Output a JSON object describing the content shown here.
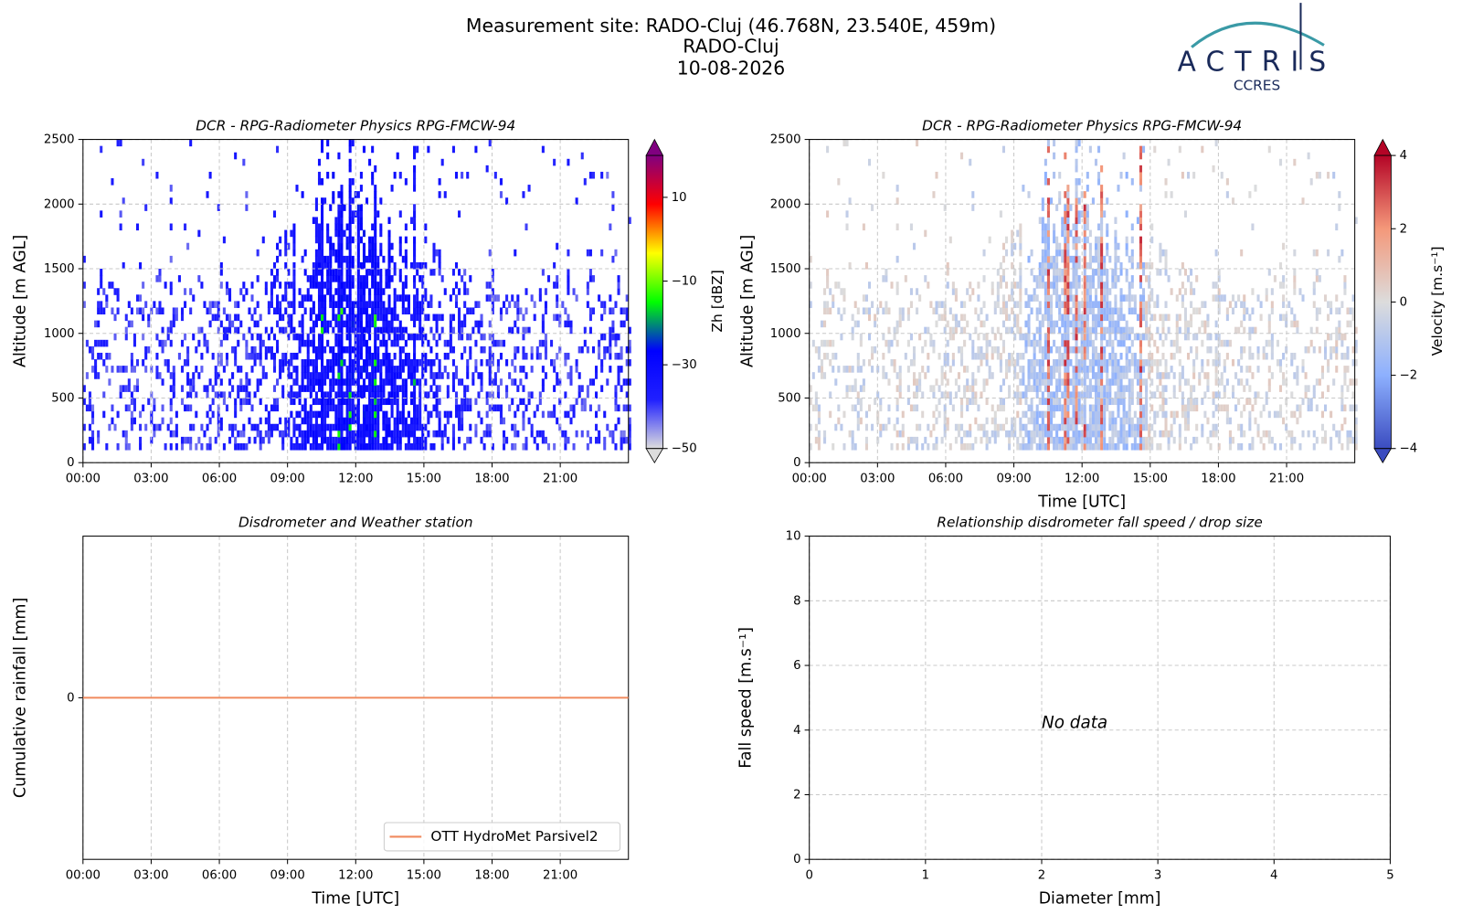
{
  "title": [
    "Measurement site: RADO-Cluj (46.768N, 23.540E, 459m)",
    "RADO-Cluj",
    "10-08-2026"
  ],
  "logo": {
    "name": "ACTRIS",
    "sub": "CCRES",
    "color": "#1a2a5a"
  },
  "chart_data": [
    {
      "type": "heatmap",
      "title": "DCR - RPG-Radiometer Physics RPG-FMCW-94",
      "y_label": "Altitude [m AGL]",
      "xlim": [
        0,
        24
      ],
      "xticks": [
        {
          "value": 0,
          "label": "00:00"
        },
        {
          "value": 3,
          "label": "03:00"
        },
        {
          "value": 6,
          "label": "06:00"
        },
        {
          "value": 9,
          "label": "09:00"
        },
        {
          "value": 12,
          "label": "12:00"
        },
        {
          "value": 15,
          "label": "15:00"
        },
        {
          "value": 18,
          "label": "18:00"
        },
        {
          "value": 21,
          "label": "21:00"
        }
      ],
      "ylim": [
        0,
        2500
      ],
      "yticks": [
        0,
        500,
        1000,
        1500,
        2000,
        2500
      ],
      "grid": true,
      "colorbar": {
        "label": "Zh [dBZ]",
        "lim": [
          -50,
          20
        ],
        "ticks": [
          {
            "value": -50,
            "label": "−50"
          },
          {
            "value": -30,
            "label": "−30"
          },
          {
            "value": -10,
            "label": "−10"
          },
          10
        ],
        "colormap": [
          "#dddddd",
          "#2020ff",
          "#0000ff",
          "#00ff00",
          "#ffff00",
          "#ff0000",
          "#800080"
        ],
        "extend": "both",
        "field": "reflectivity"
      }
    },
    {
      "type": "heatmap",
      "title": "DCR - RPG-Radiometer Physics RPG-FMCW-94",
      "y_label": "Altitude [m AGL]",
      "x_label": "Time [UTC]",
      "xlim": [
        0,
        24
      ],
      "xticks": [
        {
          "value": 0,
          "label": "00:00"
        },
        {
          "value": 3,
          "label": "03:00"
        },
        {
          "value": 6,
          "label": "06:00"
        },
        {
          "value": 9,
          "label": "09:00"
        },
        {
          "value": 12,
          "label": "12:00"
        },
        {
          "value": 15,
          "label": "15:00"
        },
        {
          "value": 18,
          "label": "18:00"
        },
        {
          "value": 21,
          "label": "21:00"
        }
      ],
      "ylim": [
        0,
        2500
      ],
      "yticks": [
        0,
        500,
        1000,
        1500,
        2000,
        2500
      ],
      "grid": true,
      "colorbar": {
        "label": "Velocity [m.s⁻¹]",
        "lim": [
          -4,
          4
        ],
        "ticks": [
          {
            "value": -4,
            "label": "−4"
          },
          {
            "value": -2,
            "label": "−2"
          },
          0,
          2,
          4
        ],
        "colormap": [
          "#3b4cc0",
          "#8db0fe",
          "#dcdcdc",
          "#f4987a",
          "#b40426"
        ],
        "extend": "both",
        "field": "velocity"
      }
    },
    {
      "type": "line",
      "title": "Disdrometer and Weather station",
      "y_label": "Cumulative rainfall [mm]",
      "x_label": "Time [UTC]",
      "xlim": [
        0,
        24
      ],
      "xticks": [
        {
          "value": 0,
          "label": "00:00"
        },
        {
          "value": 3,
          "label": "03:00"
        },
        {
          "value": 6,
          "label": "06:00"
        },
        {
          "value": 9,
          "label": "09:00"
        },
        {
          "value": 12,
          "label": "12:00"
        },
        {
          "value": 15,
          "label": "15:00"
        },
        {
          "value": 18,
          "label": "18:00"
        },
        {
          "value": 21,
          "label": "21:00"
        }
      ],
      "ylim": [
        -1,
        1
      ],
      "yticks": [
        0
      ],
      "grid": true,
      "legend": "lower right",
      "x": [
        0,
        24
      ],
      "series": [
        {
          "name": "OTT HydroMet Parsivel2",
          "color": "#f08a5d",
          "values": [
            0,
            0
          ]
        }
      ]
    },
    {
      "type": "scatter",
      "title": "Relationship disdrometer fall speed / drop size",
      "y_label": "Fall speed [m.s⁻¹]",
      "x_label": "Diameter [mm]",
      "xlim": [
        0,
        5
      ],
      "xticks": [
        0,
        1,
        2,
        3,
        4,
        5
      ],
      "ylim": [
        0,
        10
      ],
      "yticks": [
        0,
        2,
        4,
        6,
        8,
        10
      ],
      "grid": true,
      "annotation": "No data"
    }
  ]
}
